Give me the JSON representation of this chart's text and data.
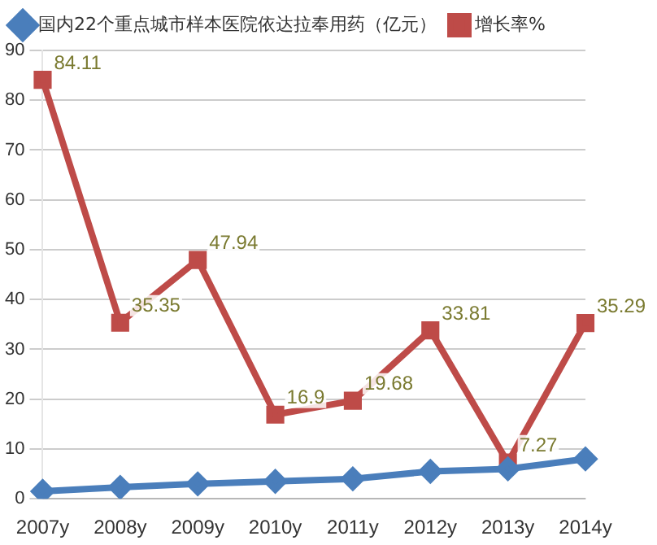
{
  "chart_data": {
    "type": "line",
    "categories": [
      "2007y",
      "2008y",
      "2009y",
      "2010y",
      "2011y",
      "2012y",
      "2013y",
      "2014y"
    ],
    "series": [
      {
        "name": "国内22个重点城市样本医院依达拉奉用药（亿元）",
        "color": "#4a7ebb",
        "marker": "diamond",
        "values": [
          1.5,
          2.3,
          3,
          3.5,
          4,
          5.5,
          6,
          8
        ]
      },
      {
        "name": "增长率%",
        "color": "#be4b48",
        "marker": "square",
        "values": [
          84.11,
          35.35,
          47.94,
          16.9,
          19.68,
          33.81,
          7.27,
          35.29
        ],
        "value_labels": [
          "84.11",
          "35.35",
          "47.94",
          "16.9",
          "19.68",
          "33.81",
          "7.27",
          "35.29"
        ]
      }
    ],
    "ylim": [
      0,
      90
    ],
    "yticks": [
      0,
      10,
      20,
      30,
      40,
      50,
      60,
      70,
      80,
      90
    ],
    "grid": "y",
    "legend": "top"
  }
}
